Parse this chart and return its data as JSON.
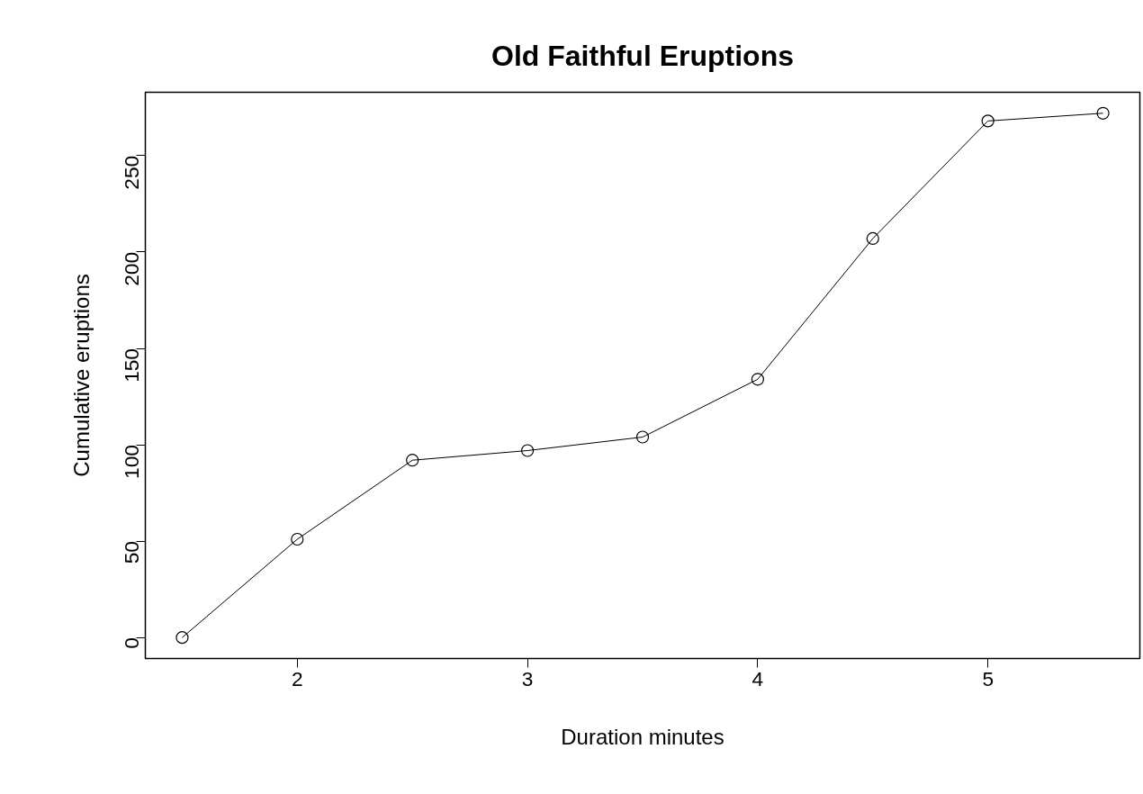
{
  "chart_data": {
    "type": "line",
    "title": "Old Faithful Eruptions",
    "xlabel": "Duration minutes",
    "ylabel": "Cumulative eruptions",
    "x": [
      1.5,
      2,
      2.5,
      3,
      3.5,
      4,
      4.5,
      5,
      5.5
    ],
    "series": [
      {
        "color": "#000000",
        "values": [
          0,
          51,
          92,
          97,
          104,
          134,
          207,
          268,
          272
        ]
      }
    ],
    "xlim": [
      1.34,
      5.66
    ],
    "ylim": [
      -10.88,
      282.88
    ],
    "xticks": [
      2,
      3,
      4,
      5
    ],
    "yticks": [
      0,
      50,
      100,
      150,
      200,
      250
    ],
    "marker": "circle",
    "line_style": "solid",
    "grid": false
  }
}
